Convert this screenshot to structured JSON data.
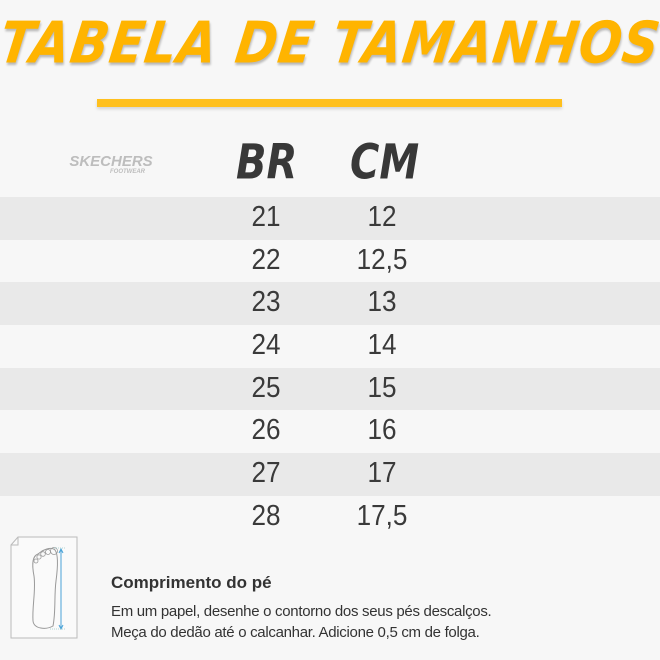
{
  "title": "TABELA DE TAMANHOS",
  "brand": {
    "name": "SKECHERS",
    "sub": "FOOTWEAR"
  },
  "colors": {
    "title": "#ffb400",
    "stripe": "#e9e9e9",
    "background": "#f7f7f7",
    "arrow": "#4aa3d8"
  },
  "table": {
    "headers": [
      "BR",
      "CM"
    ],
    "rows": [
      {
        "br": "21",
        "cm": "12"
      },
      {
        "br": "22",
        "cm": "12,5"
      },
      {
        "br": "23",
        "cm": "13"
      },
      {
        "br": "24",
        "cm": "14"
      },
      {
        "br": "25",
        "cm": "15"
      },
      {
        "br": "26",
        "cm": "16"
      },
      {
        "br": "27",
        "cm": "17"
      },
      {
        "br": "28",
        "cm": "17,5"
      }
    ]
  },
  "info": {
    "icon": "foot-measure-icon",
    "title": "Comprimento do pé",
    "line1": "Em um papel, desenhe o contorno dos seus pés descalços.",
    "line2": "Meça do dedão até o calcanhar. Adicione 0,5 cm de folga."
  }
}
